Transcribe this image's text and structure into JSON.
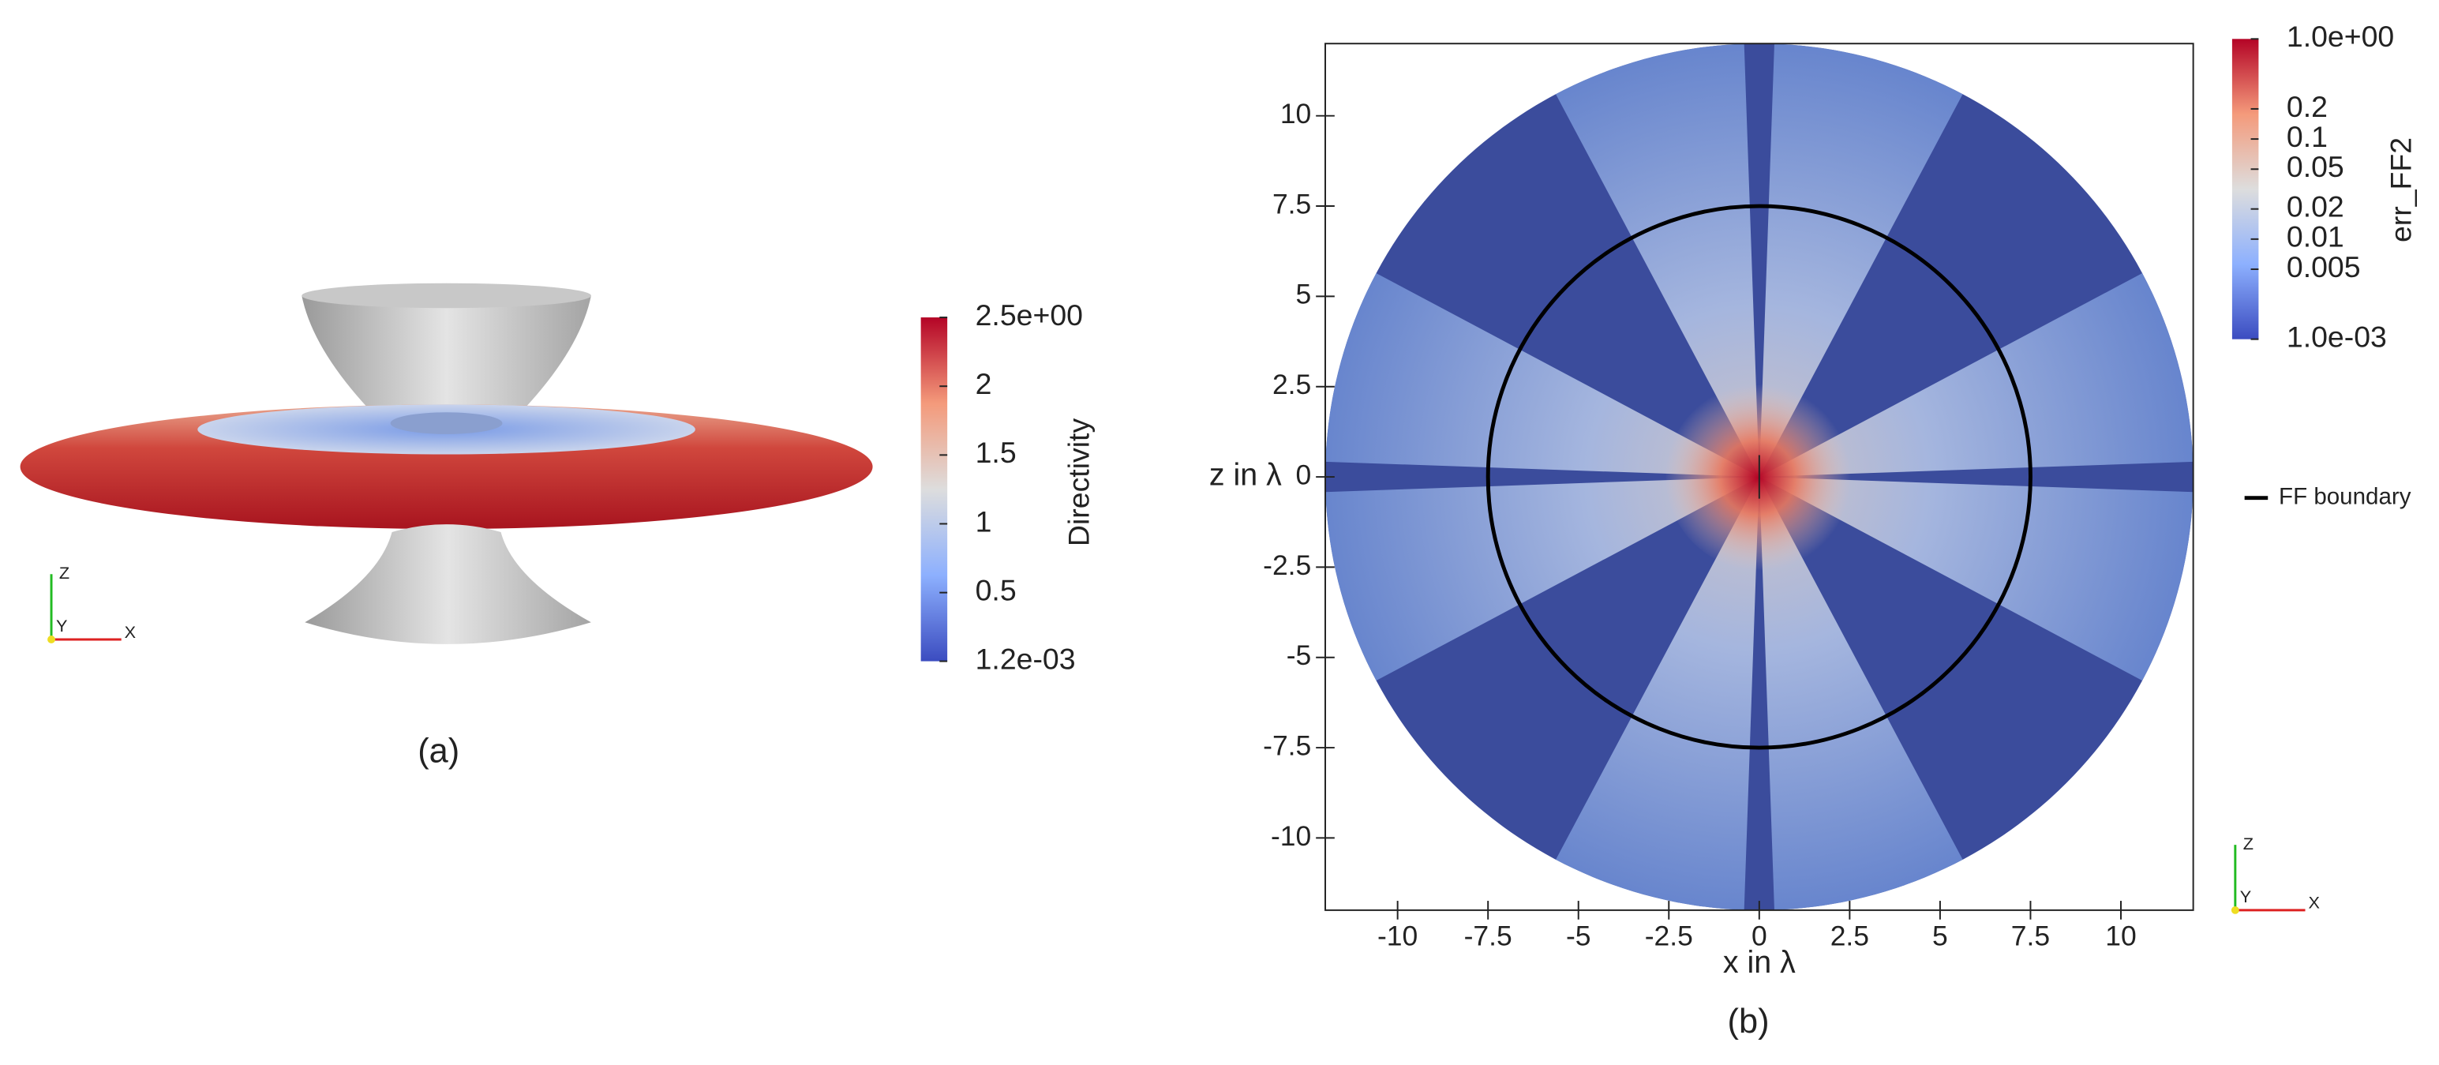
{
  "chart_data": [
    {
      "type": "surface",
      "caption": "(a)",
      "colorbar": {
        "title": "Directivity",
        "clim": [
          0.0012,
          2.5
        ],
        "log": false,
        "ticks": [
          {
            "value": 2.5,
            "label": "2.5e+00"
          },
          2,
          1.5,
          1,
          0.5,
          {
            "value": 0.0012,
            "label": "1.2e-03"
          }
        ]
      },
      "triad_labels": [
        "Z",
        "Y",
        "X"
      ]
    },
    {
      "type": "heatmap",
      "caption": "(b)",
      "xlabel": "x in λ",
      "ylabel": "z in λ",
      "xlim": [
        -12,
        12
      ],
      "ylim": [
        -12,
        12
      ],
      "xticks": [
        -10,
        -7.5,
        -5,
        -2.5,
        0,
        2.5,
        5,
        7.5,
        10
      ],
      "yticks": [
        -10,
        -7.5,
        -5,
        -2.5,
        0,
        2.5,
        5,
        7.5,
        10
      ],
      "colorbar": {
        "title": "err_FF2",
        "clim": [
          0.001,
          1
        ],
        "log": true,
        "ticks": [
          {
            "value": 1,
            "label": "1.0e+00"
          },
          0.2,
          0.1,
          0.05,
          0.02,
          0.01,
          0.005,
          {
            "value": 0.001,
            "label": "1.0e-03"
          }
        ]
      },
      "series": [
        {
          "name": "FF boundary",
          "color": "#000000",
          "radius": 7.5
        }
      ],
      "triad_labels": [
        "Z",
        "Y",
        "X"
      ]
    }
  ]
}
